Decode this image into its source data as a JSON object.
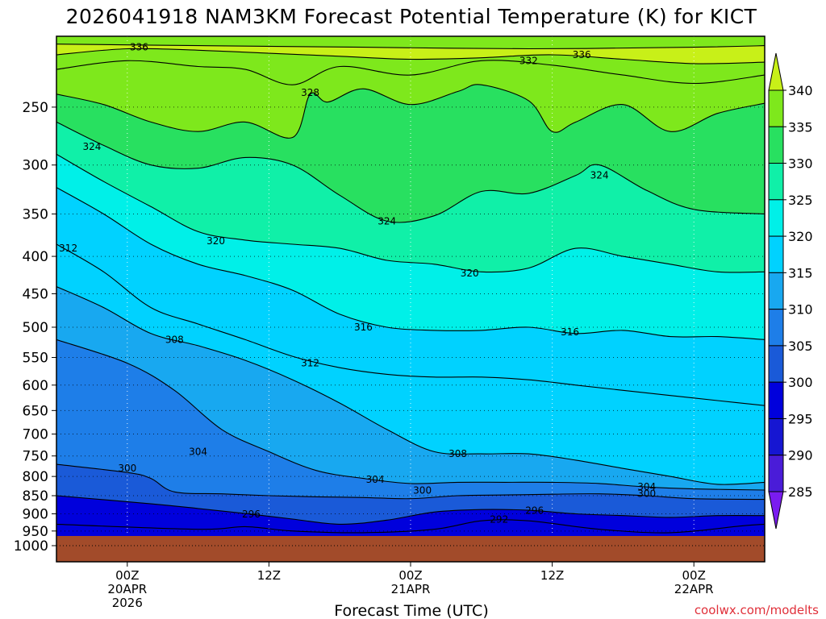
{
  "chart_data": {
    "type": "heatmap",
    "title": "2026041918 NAM3KM Forecast Potential Temperature (K) for KICT",
    "xlabel": "Forecast Time (UTC)",
    "ylabel": "",
    "y_axis": {
      "scale": "pressure (hPa)",
      "range": [
        1000,
        200
      ],
      "tick_labels": [
        "250",
        "300",
        "350",
        "400",
        "450",
        "500",
        "550",
        "600",
        "650",
        "700",
        "750",
        "800",
        "850",
        "900",
        "950",
        "1000"
      ],
      "tick_values": [
        250,
        300,
        350,
        400,
        450,
        500,
        550,
        600,
        650,
        700,
        750,
        800,
        850,
        900,
        950,
        1000
      ]
    },
    "x_axis": {
      "range_hours": [
        -6,
        54
      ],
      "ticks": [
        {
          "hour": 0,
          "label1": "00Z",
          "label2": "20APR",
          "label3": "2026"
        },
        {
          "hour": 12,
          "label1": "12Z",
          "label2": "",
          "label3": ""
        },
        {
          "hour": 24,
          "label1": "00Z",
          "label2": "21APR",
          "label3": ""
        },
        {
          "hour": 36,
          "label1": "12Z",
          "label2": "",
          "label3": ""
        },
        {
          "hour": 48,
          "label1": "00Z",
          "label2": "22APR",
          "label3": ""
        }
      ]
    },
    "colorbar": {
      "levels": [
        285,
        290,
        295,
        300,
        305,
        310,
        315,
        320,
        325,
        330,
        335,
        340
      ],
      "labels": [
        "340",
        "335",
        "330",
        "325",
        "320",
        "315",
        "310",
        "305",
        "300",
        "295",
        "290",
        "285"
      ],
      "colors": [
        "#7a1cf0",
        "#4a1cd8",
        "#1616d2",
        "#0000dc",
        "#1a5ad8",
        "#1e7ee8",
        "#18a8f0",
        "#00d2ff",
        "#00f0e8",
        "#10f0a8",
        "#28e060",
        "#7ee81c",
        "#c8f018"
      ]
    },
    "surface_color": "#a24b2a",
    "contour_interval": 4,
    "contour_labels": [
      {
        "text": "336",
        "hour": 1.0,
        "p": 207
      },
      {
        "text": "336",
        "hour": 38.5,
        "p": 212
      },
      {
        "text": "332",
        "hour": 34.0,
        "p": 216
      },
      {
        "text": "328",
        "hour": 15.5,
        "p": 239
      },
      {
        "text": "324",
        "hour": -3.0,
        "p": 283
      },
      {
        "text": "324",
        "hour": 40.0,
        "p": 310
      },
      {
        "text": "324",
        "hour": 22.0,
        "p": 358
      },
      {
        "text": "320",
        "hour": 7.5,
        "p": 381
      },
      {
        "text": "320",
        "hour": 29.0,
        "p": 422
      },
      {
        "text": "312",
        "hour": -5.0,
        "p": 390
      },
      {
        "text": "316",
        "hour": 20.0,
        "p": 500
      },
      {
        "text": "316",
        "hour": 37.5,
        "p": 508
      },
      {
        "text": "308",
        "hour": 4.0,
        "p": 520
      },
      {
        "text": "312",
        "hour": 15.5,
        "p": 560
      },
      {
        "text": "304",
        "hour": 6.0,
        "p": 740
      },
      {
        "text": "308",
        "hour": 28.0,
        "p": 745
      },
      {
        "text": "300",
        "hour": 0.0,
        "p": 780
      },
      {
        "text": "304",
        "hour": 21.0,
        "p": 808
      },
      {
        "text": "300",
        "hour": 25.0,
        "p": 836
      },
      {
        "text": "304",
        "hour": 44.0,
        "p": 827
      },
      {
        "text": "300",
        "hour": 44.0,
        "p": 845
      },
      {
        "text": "296",
        "hour": 10.5,
        "p": 901
      },
      {
        "text": "296",
        "hour": 34.5,
        "p": 891
      },
      {
        "text": "292",
        "hour": 31.5,
        "p": 916
      }
    ],
    "contour_lines": [
      {
        "k": 340,
        "pts": [
          [
            -6,
            205
          ],
          [
            6,
            206
          ],
          [
            20,
            207
          ],
          [
            34,
            208
          ],
          [
            48,
            207
          ],
          [
            54,
            206
          ]
        ]
      },
      {
        "k": 336,
        "pts": [
          [
            -6,
            212
          ],
          [
            0,
            208
          ],
          [
            6,
            209
          ],
          [
            12,
            211
          ],
          [
            18,
            213
          ],
          [
            24,
            215
          ],
          [
            30,
            214
          ],
          [
            36,
            212
          ],
          [
            42,
            215
          ],
          [
            48,
            218
          ],
          [
            54,
            217
          ]
        ]
      },
      {
        "k": 332,
        "pts": [
          [
            -6,
            222
          ],
          [
            0,
            216
          ],
          [
            6,
            220
          ],
          [
            10,
            222
          ],
          [
            14,
            233
          ],
          [
            18,
            220
          ],
          [
            24,
            226
          ],
          [
            30,
            216
          ],
          [
            36,
            219
          ],
          [
            42,
            226
          ],
          [
            48,
            232
          ],
          [
            54,
            226
          ]
        ]
      },
      {
        "k": 328,
        "pts": [
          [
            -6,
            240
          ],
          [
            -2,
            248
          ],
          [
            2,
            262
          ],
          [
            6,
            270
          ],
          [
            10,
            262
          ],
          [
            14,
            275
          ],
          [
            15.5,
            240
          ],
          [
            17,
            246
          ],
          [
            20,
            236
          ],
          [
            24,
            248
          ],
          [
            28,
            238
          ],
          [
            30,
            233
          ],
          [
            34,
            245
          ],
          [
            36,
            270
          ],
          [
            38,
            262
          ],
          [
            42,
            248
          ],
          [
            46,
            270
          ],
          [
            50,
            255
          ],
          [
            54,
            247
          ]
        ]
      },
      {
        "k": 324,
        "pts": [
          [
            -6,
            262
          ],
          [
            -2,
            282
          ],
          [
            2,
            300
          ],
          [
            6,
            303
          ],
          [
            10,
            293
          ],
          [
            14,
            300
          ],
          [
            18,
            330
          ],
          [
            22,
            358
          ],
          [
            26,
            352
          ],
          [
            30,
            326
          ],
          [
            34,
            328
          ],
          [
            38,
            310
          ],
          [
            40,
            300
          ],
          [
            44,
            325
          ],
          [
            48,
            345
          ],
          [
            54,
            350
          ]
        ]
      },
      {
        "k": 320,
        "pts": [
          [
            -6,
            290
          ],
          [
            -2,
            316
          ],
          [
            2,
            342
          ],
          [
            6,
            370
          ],
          [
            10,
            380
          ],
          [
            14,
            385
          ],
          [
            18,
            390
          ],
          [
            22,
            405
          ],
          [
            26,
            410
          ],
          [
            30,
            420
          ],
          [
            34,
            415
          ],
          [
            38,
            390
          ],
          [
            42,
            400
          ],
          [
            46,
            410
          ],
          [
            50,
            420
          ],
          [
            54,
            420
          ]
        ]
      },
      {
        "k": 316,
        "pts": [
          [
            -6,
            322
          ],
          [
            -2,
            350
          ],
          [
            2,
            385
          ],
          [
            6,
            410
          ],
          [
            10,
            425
          ],
          [
            14,
            445
          ],
          [
            18,
            480
          ],
          [
            22,
            500
          ],
          [
            26,
            505
          ],
          [
            30,
            505
          ],
          [
            34,
            500
          ],
          [
            38,
            510
          ],
          [
            42,
            505
          ],
          [
            46,
            515
          ],
          [
            50,
            515
          ],
          [
            54,
            520
          ]
        ]
      },
      {
        "k": 312,
        "pts": [
          [
            -6,
            385
          ],
          [
            -2,
            420
          ],
          [
            2,
            470
          ],
          [
            6,
            495
          ],
          [
            10,
            520
          ],
          [
            14,
            548
          ],
          [
            18,
            568
          ],
          [
            22,
            580
          ],
          [
            26,
            585
          ],
          [
            30,
            585
          ],
          [
            34,
            590
          ],
          [
            38,
            600
          ],
          [
            42,
            610
          ],
          [
            46,
            620
          ],
          [
            50,
            630
          ],
          [
            54,
            640
          ]
        ]
      },
      {
        "k": 308,
        "pts": [
          [
            -6,
            440
          ],
          [
            -2,
            470
          ],
          [
            2,
            510
          ],
          [
            6,
            530
          ],
          [
            10,
            555
          ],
          [
            14,
            590
          ],
          [
            18,
            635
          ],
          [
            22,
            690
          ],
          [
            26,
            740
          ],
          [
            30,
            745
          ],
          [
            34,
            745
          ],
          [
            38,
            760
          ],
          [
            42,
            780
          ],
          [
            46,
            800
          ],
          [
            50,
            820
          ],
          [
            54,
            815
          ]
        ]
      },
      {
        "k": 304,
        "pts": [
          [
            -6,
            520
          ],
          [
            0,
            560
          ],
          [
            4,
            610
          ],
          [
            8,
            690
          ],
          [
            12,
            740
          ],
          [
            16,
            785
          ],
          [
            20,
            805
          ],
          [
            24,
            818
          ],
          [
            28,
            815
          ],
          [
            32,
            815
          ],
          [
            36,
            815
          ],
          [
            40,
            818
          ],
          [
            44,
            827
          ],
          [
            48,
            832
          ],
          [
            54,
            835
          ]
        ]
      },
      {
        "k": 300,
        "pts": [
          [
            -6,
            770
          ],
          [
            0,
            790
          ],
          [
            2,
            805
          ],
          [
            4,
            840
          ],
          [
            8,
            845
          ],
          [
            12,
            850
          ],
          [
            16,
            853
          ],
          [
            20,
            855
          ],
          [
            24,
            858
          ],
          [
            28,
            850
          ],
          [
            32,
            848
          ],
          [
            36,
            846
          ],
          [
            40,
            845
          ],
          [
            44,
            850
          ],
          [
            48,
            858
          ],
          [
            54,
            860
          ]
        ]
      },
      {
        "k": 296,
        "pts": [
          [
            -6,
            850
          ],
          [
            2,
            872
          ],
          [
            6,
            885
          ],
          [
            10,
            899
          ],
          [
            14,
            915
          ],
          [
            18,
            930
          ],
          [
            22,
            918
          ],
          [
            26,
            895
          ],
          [
            30,
            888
          ],
          [
            34,
            890
          ],
          [
            38,
            900
          ],
          [
            42,
            905
          ],
          [
            46,
            910
          ],
          [
            50,
            905
          ],
          [
            54,
            905
          ]
        ]
      },
      {
        "k": 292,
        "pts": [
          [
            -6,
            930
          ],
          [
            6,
            945
          ],
          [
            10,
            937
          ],
          [
            14,
            950
          ],
          [
            20,
            955
          ],
          [
            26,
            945
          ],
          [
            30,
            920
          ],
          [
            34,
            920
          ],
          [
            40,
            945
          ],
          [
            46,
            955
          ],
          [
            52,
            935
          ],
          [
            54,
            930
          ]
        ]
      }
    ],
    "credit": "coolwx.com/modelts"
  }
}
